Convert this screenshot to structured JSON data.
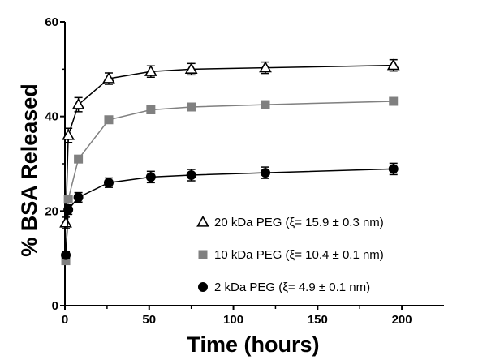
{
  "chart_data": {
    "type": "line",
    "title": "",
    "xlabel": "Time (hours)",
    "ylabel": "% BSA Released",
    "xlim": [
      0,
      225
    ],
    "ylim": [
      0,
      60
    ],
    "x_ticks": [
      "0",
      "50",
      "100",
      "150",
      "200"
    ],
    "y_ticks": [
      "0",
      "20",
      "40",
      "60"
    ],
    "grid": false,
    "legend_position": "bottom-right",
    "series": [
      {
        "name": "20 kDa PEG (ξ= 15.9 ± 0.3 nm)",
        "marker": "open-triangle",
        "color": "#000000",
        "x": [
          0.5,
          2,
          8,
          26,
          51,
          75,
          119,
          195
        ],
        "y": [
          17.5,
          36,
          42.5,
          48,
          49.5,
          50,
          50.3,
          50.8
        ],
        "error": [
          1.2,
          1.5,
          1.5,
          1.2,
          1.2,
          1.2,
          1.2,
          1.2
        ]
      },
      {
        "name": "10 kDa PEG (ξ= 10.4 ± 0.1 nm)",
        "marker": "filled-square",
        "color": "#808080",
        "x": [
          0.5,
          2,
          8,
          26,
          51,
          75,
          119,
          195
        ],
        "y": [
          9.5,
          22.5,
          31,
          39.3,
          41.4,
          42,
          42.5,
          43.2
        ],
        "error": [
          0.5,
          0.5,
          0.5,
          0.5,
          0.5,
          0.5,
          0.5,
          0.5
        ]
      },
      {
        "name": "2 kDa PEG (ξ= 4.9 ± 0.1 nm)",
        "marker": "filled-circle",
        "color": "#000000",
        "x": [
          0.5,
          2,
          8,
          26,
          51,
          75,
          119,
          195
        ],
        "y": [
          10.7,
          20.3,
          22.9,
          26,
          27.2,
          27.6,
          28.1,
          28.9
        ],
        "error": [
          0.7,
          1,
          1,
          1,
          1.2,
          1.2,
          1.2,
          1.2
        ]
      }
    ]
  }
}
